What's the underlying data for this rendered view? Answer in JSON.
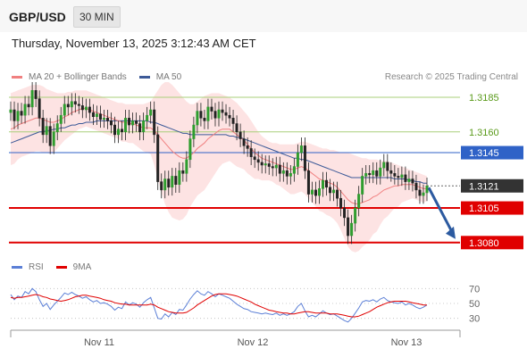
{
  "header": {
    "symbol": "GBP/USD",
    "timeframe": "30 MIN",
    "timestamp": "Thursday, November 13, 2025 3:12:43 AM CET"
  },
  "legend": {
    "main": [
      {
        "label": "MA 20 + Bollinger Bands",
        "color": "#f08080"
      },
      {
        "label": "MA 50",
        "color": "#3d5a98"
      }
    ],
    "rsi": [
      {
        "label": "RSI",
        "color": "#5b7fd6"
      },
      {
        "label": "9MA",
        "color": "#e00000"
      }
    ]
  },
  "credit": "Research © 2025 Trading Central",
  "chart_data": [
    {
      "type": "candlestick",
      "ylim": [
        1.3076,
        1.3196
      ],
      "xlabels": [
        "Nov 11",
        "Nov 12",
        "Nov 13"
      ],
      "levels": [
        {
          "value": 1.3185,
          "label": "1.3185",
          "color": "#a9cf7a",
          "label_color": "#5a9a1a",
          "style": "thin"
        },
        {
          "value": 1.316,
          "label": "1.3160",
          "color": "#a9cf7a",
          "label_color": "#5a9a1a",
          "style": "thin"
        },
        {
          "value": 1.3145,
          "label": "1.3145",
          "color": "#2f62c7",
          "label_color": "#ffffff",
          "label_bg": "#2f62c7",
          "style": "solid"
        },
        {
          "value": 1.3121,
          "label": "1.3121",
          "color": "#333333",
          "label_color": "#ffffff",
          "label_bg": "#333333",
          "style": "dotted"
        },
        {
          "value": 1.3105,
          "label": "1.3105",
          "color": "#e00000",
          "label_color": "#ffffff",
          "label_bg": "#e00000",
          "style": "bold"
        },
        {
          "value": 1.308,
          "label": "1.3080",
          "color": "#e00000",
          "label_color": "#ffffff",
          "label_bg": "#e00000",
          "style": "bold"
        }
      ],
      "forecast_arrow": {
        "from": 1.3121,
        "to": 1.308,
        "color": "#2c5aa0"
      },
      "closes": [
        1.3176,
        1.3168,
        1.3175,
        1.3172,
        1.318,
        1.3178,
        1.319,
        1.3184,
        1.317,
        1.3158,
        1.3164,
        1.315,
        1.316,
        1.3166,
        1.3172,
        1.318,
        1.3178,
        1.3182,
        1.318,
        1.3179,
        1.3176,
        1.3178,
        1.3174,
        1.3171,
        1.3173,
        1.3169,
        1.317,
        1.3168,
        1.3165,
        1.3158,
        1.3162,
        1.316,
        1.317,
        1.3165,
        1.3168,
        1.3166,
        1.316,
        1.3168,
        1.3172,
        1.3176,
        1.3158,
        1.3124,
        1.3118,
        1.3126,
        1.312,
        1.3128,
        1.3122,
        1.3132,
        1.313,
        1.314,
        1.3155,
        1.3165,
        1.3175,
        1.317,
        1.3168,
        1.3178,
        1.3175,
        1.317,
        1.3176,
        1.3174,
        1.3172,
        1.317,
        1.3166,
        1.316,
        1.3155,
        1.315,
        1.3148,
        1.3142,
        1.314,
        1.3138,
        1.3136,
        1.3137,
        1.3135,
        1.3134,
        1.3136,
        1.313,
        1.3132,
        1.3128,
        1.313,
        1.3135,
        1.3145,
        1.315,
        1.3132,
        1.3115,
        1.3118,
        1.3114,
        1.3119,
        1.3125,
        1.312,
        1.3116,
        1.3118,
        1.3112,
        1.3105,
        1.3098,
        1.3085,
        1.3094,
        1.3105,
        1.3115,
        1.3128,
        1.313,
        1.3129,
        1.3132,
        1.3128,
        1.3134,
        1.3138,
        1.3132,
        1.313,
        1.3128,
        1.3127,
        1.3129,
        1.3124,
        1.3126,
        1.3123,
        1.3118,
        1.3114,
        1.3116,
        1.3121
      ],
      "ma20": [
        1.3162,
        1.3163,
        1.3165,
        1.3166,
        1.3167,
        1.3168,
        1.3169,
        1.317,
        1.317,
        1.3169,
        1.3168,
        1.3167,
        1.3167,
        1.3168,
        1.3169,
        1.3171,
        1.3172,
        1.3174,
        1.3175,
        1.3176,
        1.3177,
        1.3177,
        1.3176,
        1.3175,
        1.3174,
        1.3173,
        1.3172,
        1.3171,
        1.317,
        1.3169,
        1.3168,
        1.3167,
        1.3167,
        1.3166,
        1.3166,
        1.3165,
        1.3164,
        1.3163,
        1.3163,
        1.3163,
        1.3161,
        1.3158,
        1.3155,
        1.3152,
        1.3149,
        1.3146,
        1.3144,
        1.3142,
        1.3141,
        1.3141,
        1.3143,
        1.3145,
        1.3148,
        1.315,
        1.3152,
        1.3155,
        1.3157,
        1.3159,
        1.3161,
        1.3162,
        1.3162,
        1.3162,
        1.316,
        1.3158,
        1.3156,
        1.3154,
        1.3151,
        1.3148,
        1.3145,
        1.3143,
        1.3141,
        1.314,
        1.3139,
        1.3138,
        1.3137,
        1.3136,
        1.3135,
        1.3134,
        1.3133,
        1.3133,
        1.3134,
        1.3135,
        1.3134,
        1.3132,
        1.313,
        1.3128,
        1.3126,
        1.3125,
        1.3124,
        1.3123,
        1.3122,
        1.312,
        1.3117,
        1.3114,
        1.3111,
        1.3109,
        1.3108,
        1.3108,
        1.3109,
        1.311,
        1.3111,
        1.3113,
        1.3114,
        1.3116,
        1.3118,
        1.3119,
        1.312,
        1.3121,
        1.3121,
        1.3122,
        1.3122,
        1.3122,
        1.3122,
        1.3121,
        1.312,
        1.3119,
        1.3119
      ],
      "ma50": [
        1.3152,
        1.3153,
        1.3154,
        1.3155,
        1.3156,
        1.3157,
        1.3158,
        1.3159,
        1.316,
        1.316,
        1.3161,
        1.3161,
        1.3162,
        1.3162,
        1.3163,
        1.3163,
        1.3164,
        1.3165,
        1.3165,
        1.3166,
        1.3166,
        1.3167,
        1.3167,
        1.3167,
        1.3168,
        1.3168,
        1.3168,
        1.3168,
        1.3168,
        1.3168,
        1.3168,
        1.3168,
        1.3168,
        1.3168,
        1.3168,
        1.3168,
        1.3168,
        1.3168,
        1.3168,
        1.3167,
        1.3167,
        1.3166,
        1.3165,
        1.3164,
        1.3163,
        1.3162,
        1.3161,
        1.316,
        1.3159,
        1.3159,
        1.3158,
        1.3158,
        1.3158,
        1.3158,
        1.3158,
        1.3158,
        1.3158,
        1.3158,
        1.3158,
        1.3158,
        1.3158,
        1.3157,
        1.3157,
        1.3156,
        1.3156,
        1.3155,
        1.3154,
        1.3153,
        1.3152,
        1.3151,
        1.315,
        1.3149,
        1.3148,
        1.3147,
        1.3146,
        1.3145,
        1.3144,
        1.3143,
        1.3142,
        1.3141,
        1.3141,
        1.314,
        1.314,
        1.3139,
        1.3138,
        1.3137,
        1.3136,
        1.3135,
        1.3134,
        1.3133,
        1.3132,
        1.3131,
        1.313,
        1.3129,
        1.3128,
        1.3127,
        1.3127,
        1.3127,
        1.3127,
        1.3127,
        1.3127,
        1.3127,
        1.3127,
        1.3127,
        1.3127,
        1.3127,
        1.3127,
        1.3126,
        1.3126,
        1.3126,
        1.3126,
        1.3125,
        1.3125,
        1.3124,
        1.3124,
        1.3123,
        1.3123
      ],
      "bb_upper": [
        1.3188,
        1.3189,
        1.319,
        1.3191,
        1.3192,
        1.3193,
        1.3194,
        1.3194,
        1.3194,
        1.3193,
        1.3191,
        1.319,
        1.3189,
        1.3188,
        1.3188,
        1.3188,
        1.3189,
        1.3189,
        1.319,
        1.319,
        1.319,
        1.319,
        1.3189,
        1.3188,
        1.3187,
        1.3186,
        1.3185,
        1.3184,
        1.3183,
        1.3182,
        1.3181,
        1.3181,
        1.318,
        1.318,
        1.318,
        1.318,
        1.318,
        1.318,
        1.3181,
        1.3182,
        1.3186,
        1.319,
        1.3194,
        1.3196,
        1.3196,
        1.3194,
        1.3191,
        1.3188,
        1.3185,
        1.3182,
        1.318,
        1.318,
        1.3182,
        1.3184,
        1.3186,
        1.3187,
        1.3188,
        1.3188,
        1.3188,
        1.3187,
        1.3186,
        1.3185,
        1.3183,
        1.3181,
        1.3178,
        1.3175,
        1.3172,
        1.3168,
        1.3164,
        1.316,
        1.3157,
        1.3155,
        1.3153,
        1.3152,
        1.3152,
        1.3151,
        1.3151,
        1.3151,
        1.3151,
        1.3151,
        1.3152,
        1.3153,
        1.3153,
        1.3152,
        1.3151,
        1.315,
        1.3149,
        1.3148,
        1.3148,
        1.3147,
        1.3147,
        1.3146,
        1.3145,
        1.3145,
        1.3145,
        1.3144,
        1.3143,
        1.3142,
        1.3141,
        1.3141,
        1.314,
        1.314,
        1.314,
        1.3139,
        1.3139,
        1.3139,
        1.3138,
        1.3137,
        1.3136,
        1.3135,
        1.3134,
        1.3133,
        1.3132,
        1.3131,
        1.313,
        1.3129,
        1.3128
      ],
      "bb_lower": [
        1.3136,
        1.3137,
        1.314,
        1.3142,
        1.3143,
        1.3144,
        1.3145,
        1.3146,
        1.3146,
        1.3145,
        1.3145,
        1.3144,
        1.3145,
        1.3148,
        1.3151,
        1.3154,
        1.3156,
        1.3158,
        1.316,
        1.3162,
        1.3163,
        1.3164,
        1.3163,
        1.3162,
        1.3161,
        1.316,
        1.3159,
        1.3158,
        1.3157,
        1.3156,
        1.3155,
        1.3153,
        1.3153,
        1.3152,
        1.3152,
        1.315,
        1.3148,
        1.3146,
        1.3145,
        1.3144,
        1.3136,
        1.3126,
        1.3116,
        1.3108,
        1.3102,
        1.3098,
        1.3097,
        1.3096,
        1.3097,
        1.31,
        1.3106,
        1.311,
        1.3114,
        1.3116,
        1.3118,
        1.3122,
        1.3126,
        1.313,
        1.3134,
        1.3137,
        1.3138,
        1.3139,
        1.3137,
        1.3135,
        1.3134,
        1.3133,
        1.313,
        1.3128,
        1.3126,
        1.3126,
        1.3125,
        1.3125,
        1.3125,
        1.3124,
        1.3122,
        1.3121,
        1.3119,
        1.3117,
        1.3115,
        1.3115,
        1.3116,
        1.3117,
        1.3115,
        1.3112,
        1.3109,
        1.3106,
        1.3103,
        1.3102,
        1.31,
        1.3099,
        1.3097,
        1.3094,
        1.3089,
        1.3083,
        1.3077,
        1.3074,
        1.3073,
        1.3074,
        1.3077,
        1.3079,
        1.3082,
        1.3086,
        1.3088,
        1.3093,
        1.3097,
        1.3099,
        1.3102,
        1.3105,
        1.3106,
        1.3109,
        1.311,
        1.3111,
        1.3112,
        1.3111,
        1.311,
        1.3109,
        1.311
      ]
    },
    {
      "type": "line",
      "ylim": [
        20,
        80
      ],
      "ticks": [
        {
          "value": 70,
          "label": "70"
        },
        {
          "value": 50,
          "label": "50"
        },
        {
          "value": 30,
          "label": "30"
        }
      ],
      "series": [
        {
          "name": "RSI",
          "color": "#5b7fd6",
          "values": [
            62,
            55,
            60,
            58,
            66,
            63,
            70,
            66,
            55,
            46,
            50,
            42,
            48,
            53,
            58,
            64,
            62,
            65,
            62,
            60,
            57,
            59,
            55,
            52,
            54,
            50,
            51,
            49,
            46,
            41,
            45,
            43,
            52,
            48,
            51,
            49,
            45,
            51,
            55,
            58,
            44,
            30,
            29,
            36,
            32,
            38,
            35,
            42,
            41,
            48,
            56,
            62,
            67,
            63,
            61,
            66,
            63,
            59,
            63,
            61,
            59,
            57,
            53,
            49,
            46,
            43,
            42,
            39,
            38,
            37,
            36,
            37,
            36,
            35,
            37,
            34,
            36,
            34,
            36,
            39,
            46,
            50,
            40,
            32,
            34,
            32,
            36,
            40,
            37,
            35,
            36,
            33,
            30,
            27,
            25,
            30,
            37,
            44,
            52,
            54,
            53,
            55,
            52,
            56,
            58,
            54,
            52,
            51,
            50,
            52,
            48,
            50,
            48,
            45,
            43,
            45,
            48
          ]
        },
        {
          "name": "9MA",
          "color": "#e00000",
          "values": [
            58,
            57,
            58,
            58,
            59,
            60,
            61,
            62,
            61,
            59,
            58,
            56,
            55,
            54,
            53,
            54,
            55,
            57,
            59,
            60,
            61,
            61,
            60,
            59,
            58,
            57,
            55,
            54,
            53,
            51,
            50,
            49,
            49,
            48,
            48,
            48,
            48,
            48,
            48,
            49,
            48,
            45,
            43,
            41,
            39,
            38,
            37,
            37,
            37,
            38,
            41,
            44,
            48,
            51,
            54,
            57,
            60,
            62,
            63,
            63,
            63,
            62,
            61,
            60,
            58,
            56,
            54,
            52,
            49,
            47,
            45,
            43,
            41,
            40,
            39,
            38,
            37,
            37,
            36,
            36,
            37,
            38,
            39,
            39,
            38,
            37,
            37,
            37,
            37,
            36,
            36,
            36,
            35,
            34,
            33,
            32,
            32,
            33,
            35,
            37,
            39,
            42,
            45,
            47,
            49,
            51,
            52,
            53,
            53,
            53,
            53,
            52,
            51,
            50,
            49,
            48,
            48
          ]
        }
      ]
    }
  ]
}
